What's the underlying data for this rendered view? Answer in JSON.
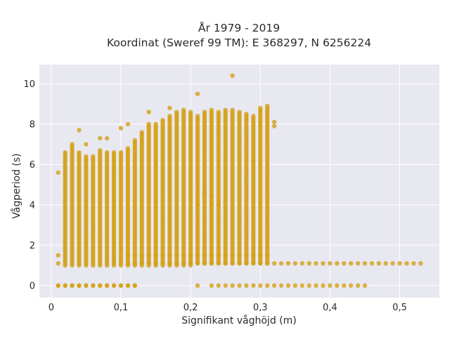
{
  "chart_data": {
    "type": "scatter",
    "title_lines": [
      "År 1979 - 2019",
      "Koordinat (Sweref 99 TM): E 368297, N 6256224"
    ],
    "xlabel": "Signifikant våghöjd (m)",
    "ylabel": "Vågperiod (s)",
    "xlim": [
      -0.017,
      0.557
    ],
    "ylim": [
      -0.6,
      10.95
    ],
    "x_ticks": [
      0,
      0.1,
      0.2,
      0.3,
      0.4,
      0.5
    ],
    "x_tick_labels": [
      "0",
      "0,1",
      "0,2",
      "0,3",
      "0,4",
      "0,5"
    ],
    "y_ticks": [
      0,
      2,
      4,
      6,
      8,
      10
    ],
    "y_tick_labels": [
      "0",
      "2",
      "4",
      "6",
      "8",
      "10"
    ],
    "grid": true,
    "legend": "none",
    "marker_color": "#d4a017",
    "background_color": "#e8e8f0",
    "x_step": 0.01,
    "columns": [
      {
        "x": 0.01,
        "ymin": 0,
        "ymax": 0,
        "extra": [
          1.1,
          1.5,
          5.6
        ]
      },
      {
        "x": 0.02,
        "ymin": 1.0,
        "ymax": 6.6,
        "extra": [
          0
        ]
      },
      {
        "x": 0.03,
        "ymin": 1.0,
        "ymax": 7.0,
        "extra": [
          0
        ]
      },
      {
        "x": 0.04,
        "ymin": 1.0,
        "ymax": 6.6,
        "extra": [
          0,
          7.7
        ]
      },
      {
        "x": 0.05,
        "ymin": 1.0,
        "ymax": 6.4,
        "extra": [
          0,
          7.0
        ]
      },
      {
        "x": 0.06,
        "ymin": 1.0,
        "ymax": 6.4,
        "extra": [
          0
        ]
      },
      {
        "x": 0.07,
        "ymin": 1.0,
        "ymax": 6.7,
        "extra": [
          0,
          7.3
        ]
      },
      {
        "x": 0.08,
        "ymin": 1.0,
        "ymax": 6.6,
        "extra": [
          0,
          7.3
        ]
      },
      {
        "x": 0.09,
        "ymin": 1.0,
        "ymax": 6.6,
        "extra": [
          0
        ]
      },
      {
        "x": 0.1,
        "ymin": 1.0,
        "ymax": 6.6,
        "extra": [
          0,
          7.8
        ]
      },
      {
        "x": 0.11,
        "ymin": 1.0,
        "ymax": 6.8,
        "extra": [
          0,
          8.0
        ]
      },
      {
        "x": 0.12,
        "ymin": 1.0,
        "ymax": 7.2,
        "extra": [
          0
        ]
      },
      {
        "x": 0.13,
        "ymin": 1.0,
        "ymax": 7.6,
        "extra": []
      },
      {
        "x": 0.14,
        "ymin": 1.0,
        "ymax": 8.0,
        "extra": [
          8.6
        ]
      },
      {
        "x": 0.15,
        "ymin": 1.0,
        "ymax": 8.0,
        "extra": []
      },
      {
        "x": 0.16,
        "ymin": 1.0,
        "ymax": 8.2,
        "extra": []
      },
      {
        "x": 0.17,
        "ymin": 1.0,
        "ymax": 8.4,
        "extra": [
          8.8
        ]
      },
      {
        "x": 0.18,
        "ymin": 1.0,
        "ymax": 8.6,
        "extra": []
      },
      {
        "x": 0.19,
        "ymin": 1.0,
        "ymax": 8.7,
        "extra": []
      },
      {
        "x": 0.2,
        "ymin": 1.0,
        "ymax": 8.6,
        "extra": []
      },
      {
        "x": 0.21,
        "ymin": 1.1,
        "ymax": 8.4,
        "extra": [
          0,
          9.5,
          4.0
        ]
      },
      {
        "x": 0.22,
        "ymin": 1.1,
        "ymax": 8.6,
        "extra": [
          4.6
        ]
      },
      {
        "x": 0.23,
        "ymin": 1.1,
        "ymax": 8.7,
        "extra": [
          0,
          4.0,
          4.4
        ]
      },
      {
        "x": 0.24,
        "ymin": 1.1,
        "ymax": 8.6,
        "extra": [
          0,
          4.0
        ]
      },
      {
        "x": 0.25,
        "ymin": 1.1,
        "ymax": 8.7,
        "extra": [
          0
        ]
      },
      {
        "x": 0.26,
        "ymin": 1.1,
        "ymax": 8.7,
        "extra": [
          0,
          10.4
        ]
      },
      {
        "x": 0.27,
        "ymin": 1.1,
        "ymax": 8.6,
        "extra": [
          0
        ]
      },
      {
        "x": 0.28,
        "ymin": 1.1,
        "ymax": 8.5,
        "extra": [
          0
        ]
      },
      {
        "x": 0.29,
        "ymin": 1.1,
        "ymax": 8.4,
        "extra": [
          0,
          6.2
        ]
      },
      {
        "x": 0.3,
        "ymin": 1.1,
        "ymax": 8.8,
        "extra": [
          0
        ]
      },
      {
        "x": 0.31,
        "ymin": 1.1,
        "ymax": 8.9,
        "extra": [
          0
        ]
      },
      {
        "x": 0.32,
        "ymin": 1.1,
        "ymax": 1.1,
        "extra": [
          0,
          7.9,
          8.1
        ]
      },
      {
        "x": 0.33,
        "ymin": 1.1,
        "ymax": 1.1,
        "extra": [
          0
        ]
      },
      {
        "x": 0.34,
        "ymin": 1.1,
        "ymax": 1.1,
        "extra": [
          0
        ]
      },
      {
        "x": 0.35,
        "ymin": 1.1,
        "ymax": 1.1,
        "extra": [
          0
        ]
      },
      {
        "x": 0.36,
        "ymin": 1.1,
        "ymax": 1.1,
        "extra": [
          0
        ]
      },
      {
        "x": 0.37,
        "ymin": 1.1,
        "ymax": 1.1,
        "extra": [
          0
        ]
      },
      {
        "x": 0.38,
        "ymin": 1.1,
        "ymax": 1.1,
        "extra": [
          0
        ]
      },
      {
        "x": 0.39,
        "ymin": 1.1,
        "ymax": 1.1,
        "extra": [
          0
        ]
      },
      {
        "x": 0.4,
        "ymin": 1.1,
        "ymax": 1.1,
        "extra": [
          0
        ]
      },
      {
        "x": 0.41,
        "ymin": 1.1,
        "ymax": 1.1,
        "extra": [
          0
        ]
      },
      {
        "x": 0.42,
        "ymin": 1.1,
        "ymax": 1.1,
        "extra": [
          0
        ]
      },
      {
        "x": 0.43,
        "ymin": 1.1,
        "ymax": 1.1,
        "extra": [
          0
        ]
      },
      {
        "x": 0.44,
        "ymin": 1.1,
        "ymax": 1.1,
        "extra": [
          0
        ]
      },
      {
        "x": 0.45,
        "ymin": 1.1,
        "ymax": 1.1,
        "extra": [
          0
        ]
      },
      {
        "x": 0.46,
        "ymin": 1.1,
        "ymax": 1.1,
        "extra": []
      },
      {
        "x": 0.47,
        "ymin": 1.1,
        "ymax": 1.1,
        "extra": []
      },
      {
        "x": 0.48,
        "ymin": 1.1,
        "ymax": 1.1,
        "extra": []
      },
      {
        "x": 0.49,
        "ymin": 1.1,
        "ymax": 1.1,
        "extra": []
      },
      {
        "x": 0.5,
        "ymin": 1.1,
        "ymax": 1.1,
        "extra": []
      },
      {
        "x": 0.51,
        "ymin": 1.1,
        "ymax": 1.1,
        "extra": []
      },
      {
        "x": 0.52,
        "ymin": 1.1,
        "ymax": 1.1,
        "extra": []
      },
      {
        "x": 0.53,
        "ymin": 1.1,
        "ymax": 1.1,
        "extra": []
      }
    ],
    "extra_row_y": [
      1.5,
      1.1
    ],
    "extra_row_xrange": [
      0.11,
      0.31
    ],
    "zero_row_xrange": [
      0.01,
      0.12
    ]
  }
}
